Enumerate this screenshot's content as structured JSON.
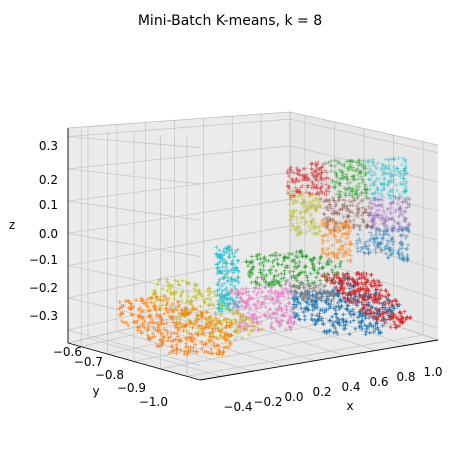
{
  "chart_data": {
    "type": "scatter",
    "projection": "3d",
    "title": "Mini-Batch K-means, k = 8",
    "xlabel": "x",
    "ylabel": "y",
    "zlabel": "z",
    "x_ticks": [
      "−0.4",
      "−0.2",
      "0.0",
      "0.2",
      "0.4",
      "0.6",
      "0.8",
      "1.0"
    ],
    "y_ticks": [
      "−0.6",
      "−0.7",
      "−0.8",
      "−0.9",
      "−1.0"
    ],
    "z_ticks": [
      "0.3",
      "0.2",
      "0.1",
      "0.0",
      "−0.1",
      "−0.2",
      "−0.3"
    ],
    "xlim": [
      -0.5,
      1.05
    ],
    "ylim": [
      -1.02,
      -0.55
    ],
    "zlim": [
      -0.33,
      0.33
    ],
    "grid": true,
    "marker": "+",
    "colors": {
      "blue": "#1f77b4",
      "orange": "#ff7f0e",
      "green": "#2ca02c",
      "red": "#d62728",
      "purple": "#9467bd",
      "brown": "#8c564b",
      "pink": "#e377c2",
      "gray": "#7f7f7f",
      "olive": "#bcbd22",
      "cyan": "#17becf"
    },
    "clusters": [
      {
        "color": "cyan",
        "region": "wall",
        "x": [
          -0.15,
          0.05
        ],
        "y": [
          -0.62,
          -0.58
        ],
        "z": [
          -0.22,
          -0.08
        ]
      },
      {
        "color": "green",
        "region": "mid",
        "x": [
          0.1,
          0.45
        ],
        "y": [
          -0.66,
          -0.58
        ],
        "z": [
          -0.16,
          -0.12
        ]
      },
      {
        "color": "pink",
        "region": "mid",
        "x": [
          -0.05,
          0.3
        ],
        "y": [
          -0.78,
          -0.66
        ],
        "z": [
          -0.24,
          -0.14
        ]
      },
      {
        "color": "olive",
        "region": "floor",
        "x": [
          -0.5,
          0.1
        ],
        "y": [
          -0.9,
          -0.6
        ],
        "z": [
          -0.32,
          -0.26
        ]
      },
      {
        "color": "orange",
        "region": "floor",
        "x": [
          -0.4,
          0.1
        ],
        "y": [
          -1.0,
          -0.75
        ],
        "z": [
          -0.33,
          -0.28
        ]
      },
      {
        "color": "blue",
        "region": "floor",
        "x": [
          0.3,
          0.85
        ],
        "y": [
          -0.85,
          -0.6
        ],
        "z": [
          -0.33,
          -0.28
        ]
      },
      {
        "color": "red",
        "region": "floor",
        "x": [
          0.45,
          1.0
        ],
        "y": [
          -0.75,
          -0.6
        ],
        "z": [
          -0.3,
          -0.25
        ]
      },
      {
        "color": "gray",
        "region": "floor",
        "x": [
          0.2,
          0.5
        ],
        "y": [
          -0.7,
          -0.62
        ],
        "z": [
          -0.26,
          -0.22
        ]
      }
    ]
  }
}
